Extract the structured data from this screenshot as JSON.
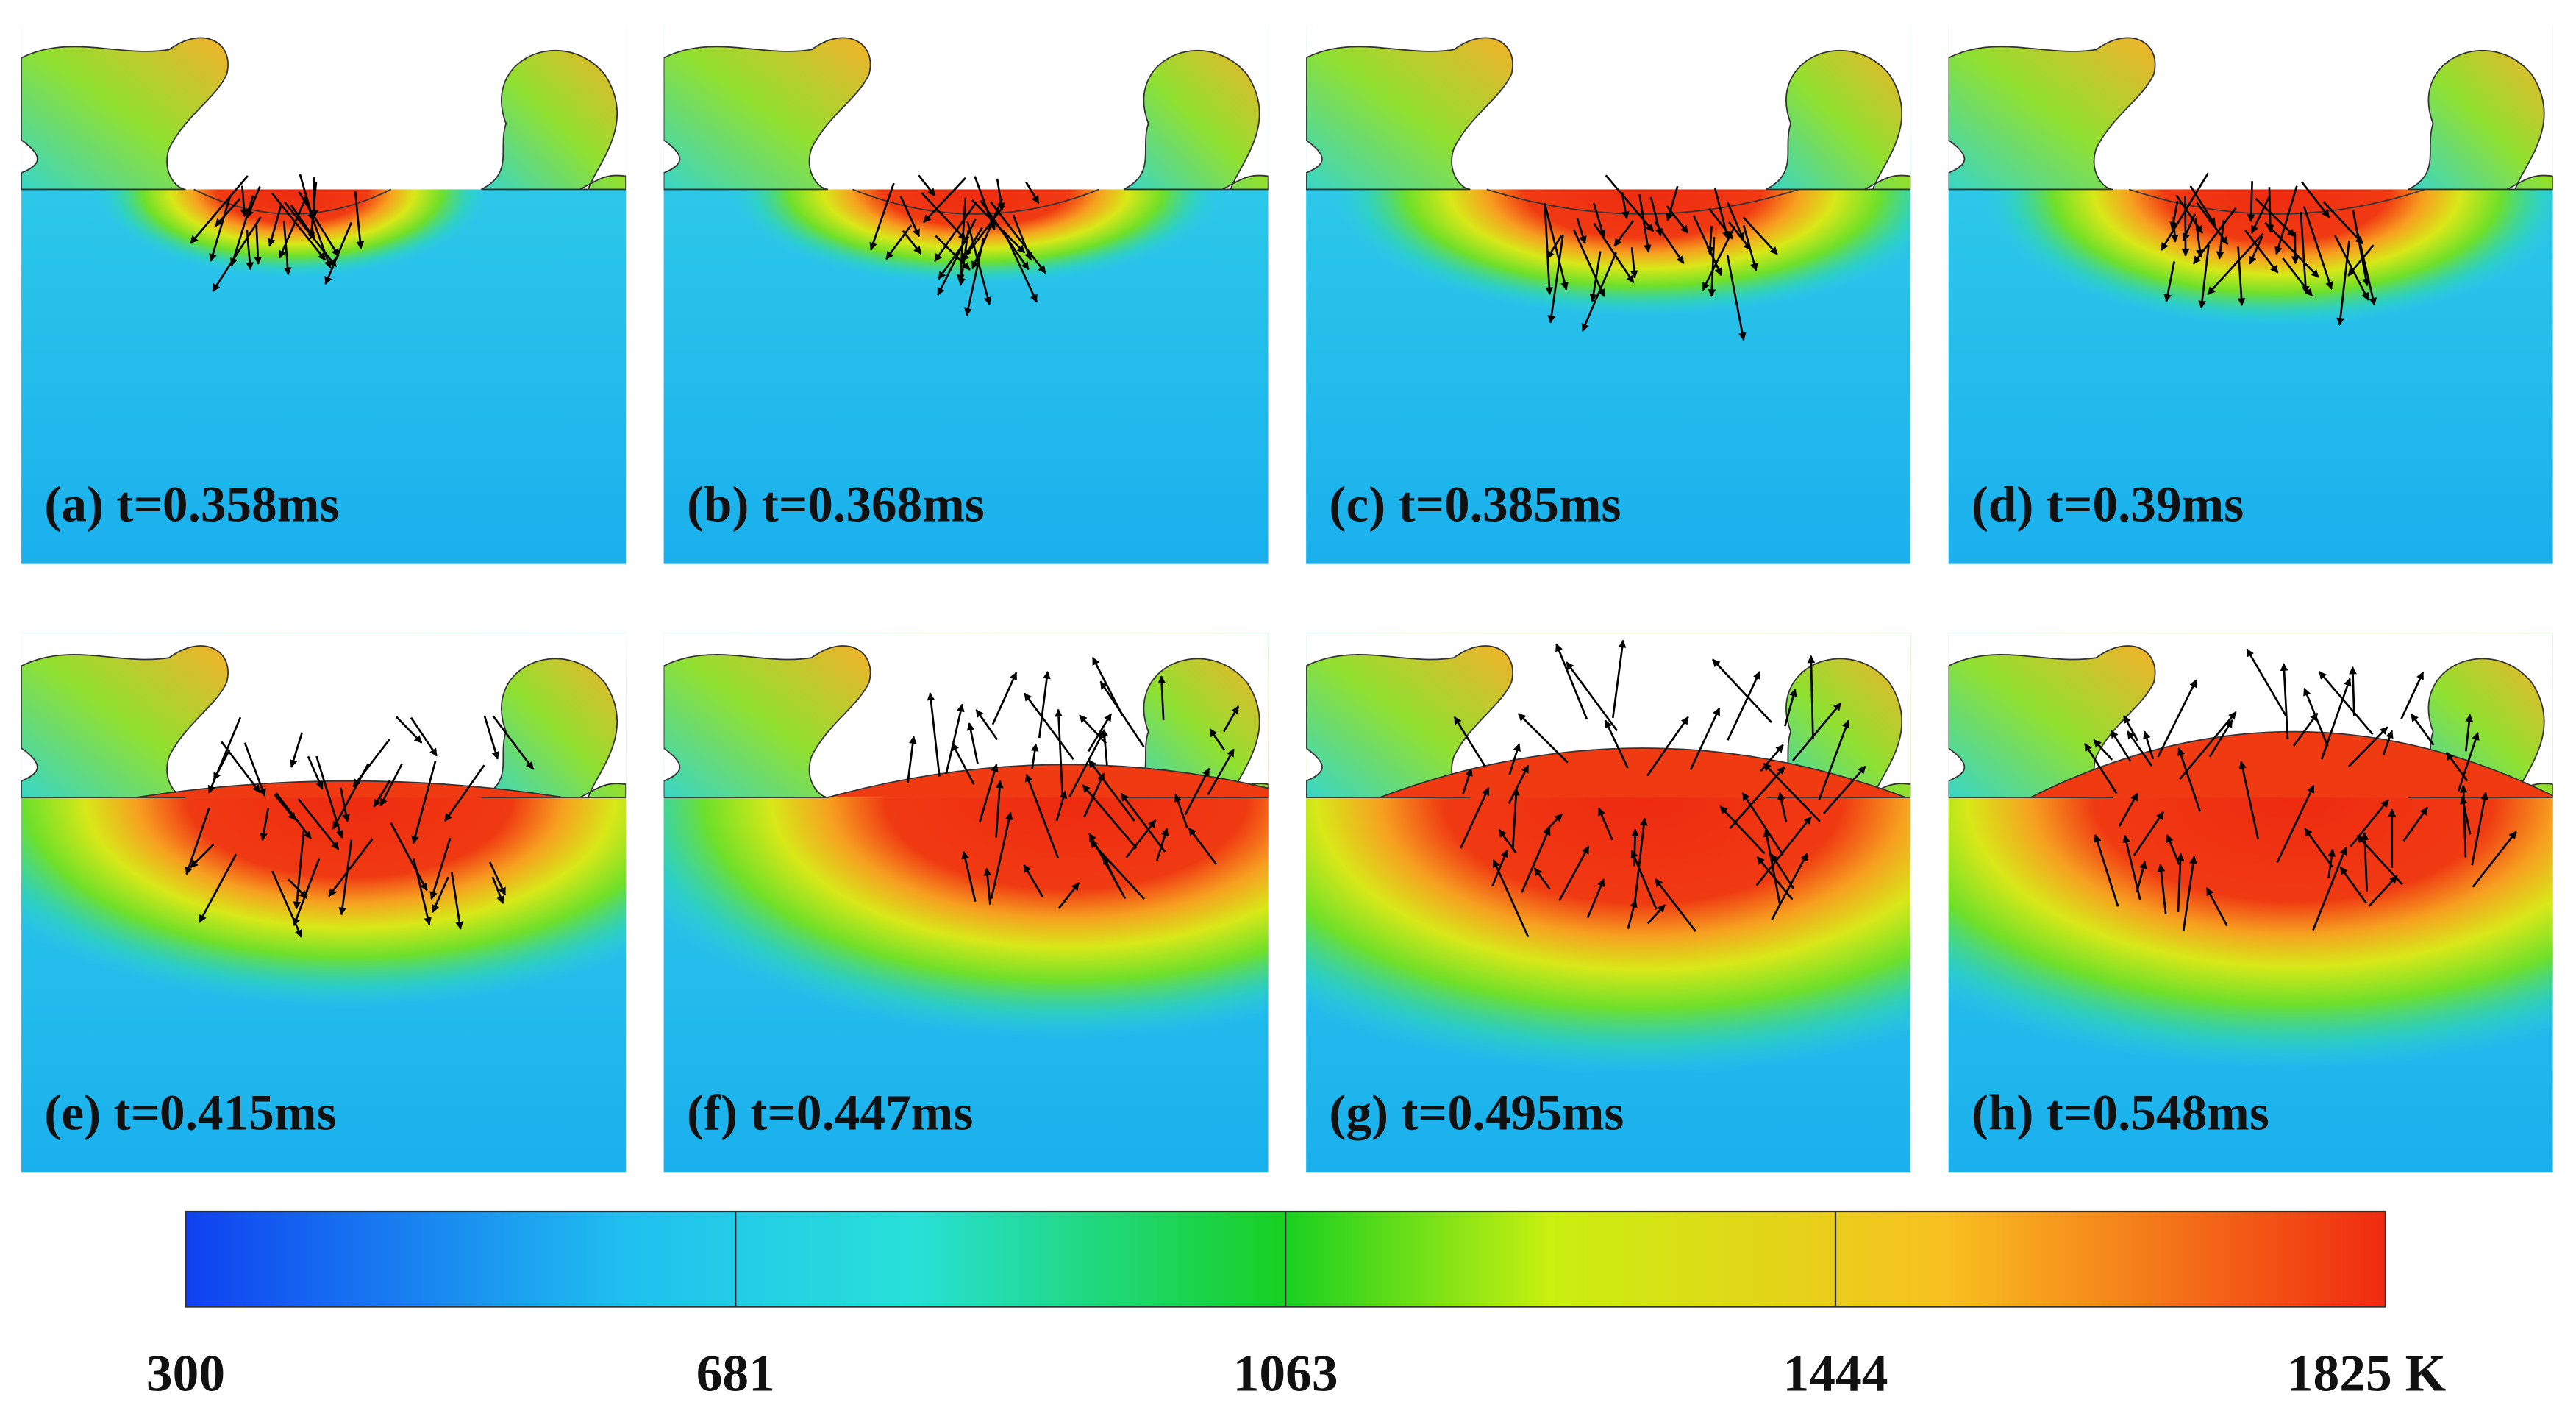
{
  "panels": [
    {
      "label": "(a) t=0.358ms"
    },
    {
      "label": "(b) t=0.368ms"
    },
    {
      "label": "(c) t=0.385ms"
    },
    {
      "label": "(d) t=0.39ms"
    },
    {
      "label": "(e) t=0.415ms"
    },
    {
      "label": "(f) t=0.447ms"
    },
    {
      "label": "(g) t=0.495ms"
    },
    {
      "label": "(h) t=0.548ms"
    }
  ],
  "colorbar": {
    "ticks": [
      "300",
      "681",
      "1063",
      "1444",
      "1825 K"
    ]
  }
}
